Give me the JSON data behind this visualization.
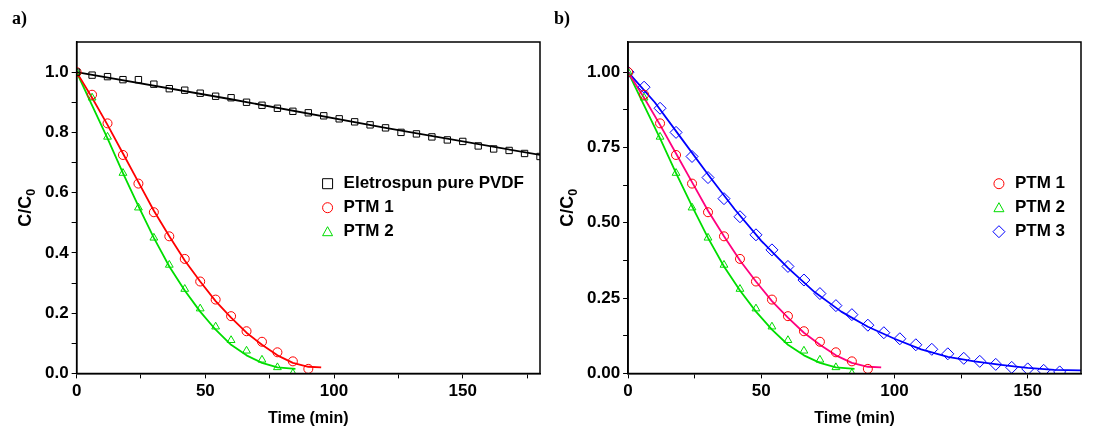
{
  "chart_data": [
    {
      "type": "scatter",
      "title": "a)",
      "xlabel": "Time (min)",
      "ylabel": "C/C$_{0}$",
      "xlim": [
        0,
        180
      ],
      "xticks": [
        0,
        {
          "value": 25,
          "label": null
        },
        50,
        {
          "value": 75,
          "label": null
        },
        100,
        {
          "value": 125,
          "label": null
        },
        150,
        {
          "value": 175,
          "label": null
        }
      ],
      "ylim": [
        0,
        1.1
      ],
      "yticks": [
        {
          "value": 0,
          "label": "0.0"
        },
        {
          "value": 0.1,
          "label": null
        },
        0.2,
        {
          "value": 0.3,
          "label": null
        },
        0.4,
        {
          "value": 0.5,
          "label": null
        },
        0.6,
        {
          "value": 0.7,
          "label": null
        },
        0.8,
        {
          "value": 0.9,
          "label": null
        },
        {
          "value": 1.0,
          "label": "1.0"
        }
      ],
      "grid": false,
      "legend": "right",
      "series": [
        {
          "name": "Eletrospun pure PVDF",
          "marker": "square",
          "color": "#000000",
          "x": [
            0,
            6,
            12,
            18,
            24,
            30,
            36,
            42,
            48,
            54,
            60,
            66,
            72,
            78,
            84,
            90,
            96,
            102,
            108,
            114,
            120,
            126,
            132,
            138,
            144,
            150,
            156,
            162,
            168,
            174,
            180
          ],
          "values": [
            1.0,
            0.99,
            0.985,
            0.975,
            0.975,
            0.96,
            0.945,
            0.94,
            0.93,
            0.92,
            0.915,
            0.9,
            0.89,
            0.88,
            0.87,
            0.865,
            0.855,
            0.845,
            0.835,
            0.825,
            0.815,
            0.8,
            0.795,
            0.785,
            0.775,
            0.77,
            0.755,
            0.745,
            0.74,
            0.73,
            0.72
          ]
        },
        {
          "name": "PTM 1",
          "marker": "circle",
          "color": "#ff0000",
          "x": [
            0,
            6,
            12,
            18,
            24,
            30,
            36,
            42,
            48,
            54,
            60,
            66,
            72,
            78,
            84,
            90
          ],
          "values": [
            1.0,
            0.925,
            0.83,
            0.725,
            0.63,
            0.535,
            0.455,
            0.38,
            0.305,
            0.245,
            0.19,
            0.14,
            0.105,
            0.07,
            0.04,
            0.015
          ]
        },
        {
          "name": "PTM 2",
          "marker": "triangle",
          "color": "#00dd00",
          "x": [
            0,
            6,
            12,
            18,
            24,
            30,
            36,
            42,
            48,
            54,
            60,
            66,
            72,
            78,
            84
          ],
          "values": [
            1.0,
            0.915,
            0.785,
            0.665,
            0.55,
            0.45,
            0.36,
            0.28,
            0.215,
            0.155,
            0.11,
            0.075,
            0.045,
            0.02,
            0.0
          ]
        },
        {
          "type": "line",
          "marker": "none",
          "color": "#000000",
          "x": [
            0,
            60,
            120,
            180
          ],
          "values": [
            1.0,
            0.91,
            0.815,
            0.725
          ]
        },
        {
          "type": "line",
          "marker": "none",
          "color": "#ff0000",
          "x": [
            0,
            6,
            12,
            18,
            24,
            30,
            36,
            42,
            48,
            54,
            60,
            66,
            72,
            78,
            84,
            90,
            95
          ],
          "values": [
            1.0,
            0.915,
            0.825,
            0.73,
            0.635,
            0.54,
            0.455,
            0.375,
            0.305,
            0.24,
            0.185,
            0.135,
            0.095,
            0.06,
            0.035,
            0.022,
            0.02
          ]
        },
        {
          "type": "line",
          "marker": "none",
          "color": "#00dd00",
          "x": [
            0,
            6,
            12,
            18,
            24,
            30,
            36,
            42,
            48,
            54,
            60,
            66,
            72,
            78,
            85
          ],
          "values": [
            1.0,
            0.89,
            0.78,
            0.665,
            0.555,
            0.45,
            0.355,
            0.275,
            0.205,
            0.145,
            0.095,
            0.06,
            0.035,
            0.02,
            0.015
          ]
        }
      ]
    },
    {
      "type": "scatter",
      "title": "b)",
      "xlabel": "Time (min)",
      "ylabel": "C/C$_{0}$",
      "xlim": [
        0,
        170
      ],
      "xticks": [
        0,
        {
          "value": 25,
          "label": null
        },
        50,
        {
          "value": 75,
          "label": null
        },
        100,
        {
          "value": 125,
          "label": null
        },
        150
      ],
      "ylim": [
        0,
        1.1
      ],
      "yticks": [
        {
          "value": 0,
          "label": "0.00"
        },
        {
          "value": 0.125,
          "label": null
        },
        0.25,
        {
          "value": 0.375,
          "label": null
        },
        {
          "value": 0.5,
          "label": "0.50"
        },
        {
          "value": 0.625,
          "label": null
        },
        0.75,
        {
          "value": 0.875,
          "label": null
        },
        {
          "value": 1.0,
          "label": "1.00"
        }
      ],
      "grid": false,
      "legend": "right",
      "series": [
        {
          "name": "PTM 1",
          "marker": "circle",
          "color": "#ff0000",
          "x": [
            0,
            6,
            12,
            18,
            24,
            30,
            36,
            42,
            48,
            54,
            60,
            66,
            72,
            78,
            84,
            90
          ],
          "values": [
            1.0,
            0.925,
            0.83,
            0.725,
            0.63,
            0.535,
            0.455,
            0.38,
            0.305,
            0.245,
            0.19,
            0.14,
            0.105,
            0.07,
            0.04,
            0.015
          ]
        },
        {
          "name": "PTM 2",
          "marker": "triangle",
          "color": "#00dd00",
          "x": [
            0,
            6,
            12,
            18,
            24,
            30,
            36,
            42,
            48,
            54,
            60,
            66,
            72,
            78,
            84
          ],
          "values": [
            1.0,
            0.915,
            0.785,
            0.665,
            0.55,
            0.45,
            0.36,
            0.28,
            0.215,
            0.155,
            0.11,
            0.075,
            0.045,
            0.02,
            0.0
          ]
        },
        {
          "name": "PTM 3",
          "marker": "diamond",
          "color": "#0000ff",
          "x": [
            0,
            6,
            12,
            18,
            24,
            30,
            36,
            42,
            48,
            54,
            60,
            66,
            72,
            78,
            84,
            90,
            96,
            102,
            108,
            114,
            120,
            126,
            132,
            138,
            144,
            150,
            156,
            162
          ],
          "values": [
            1.0,
            0.95,
            0.88,
            0.8,
            0.72,
            0.65,
            0.58,
            0.52,
            0.46,
            0.41,
            0.355,
            0.31,
            0.265,
            0.225,
            0.195,
            0.16,
            0.135,
            0.115,
            0.095,
            0.08,
            0.065,
            0.05,
            0.04,
            0.03,
            0.02,
            0.015,
            0.01,
            0.005
          ]
        },
        {
          "type": "line",
          "marker": "none",
          "color": "#ff0080",
          "x": [
            0,
            6,
            12,
            18,
            24,
            30,
            36,
            42,
            48,
            54,
            60,
            66,
            72,
            78,
            84,
            90,
            95
          ],
          "values": [
            1.0,
            0.915,
            0.825,
            0.73,
            0.635,
            0.54,
            0.455,
            0.375,
            0.305,
            0.24,
            0.185,
            0.135,
            0.095,
            0.06,
            0.035,
            0.022,
            0.02
          ]
        },
        {
          "type": "line",
          "marker": "none",
          "color": "#00dd00",
          "x": [
            0,
            6,
            12,
            18,
            24,
            30,
            36,
            42,
            48,
            54,
            60,
            66,
            72,
            78,
            85
          ],
          "values": [
            1.0,
            0.89,
            0.78,
            0.665,
            0.555,
            0.45,
            0.355,
            0.275,
            0.205,
            0.145,
            0.095,
            0.06,
            0.035,
            0.02,
            0.015
          ]
        },
        {
          "type": "line",
          "marker": "none",
          "color": "#0000ff",
          "x": [
            0,
            10,
            20,
            30,
            40,
            50,
            60,
            70,
            80,
            90,
            100,
            110,
            120,
            130,
            140,
            150,
            160,
            170
          ],
          "values": [
            1.0,
            0.9,
            0.78,
            0.66,
            0.545,
            0.44,
            0.35,
            0.27,
            0.205,
            0.155,
            0.115,
            0.08,
            0.055,
            0.04,
            0.028,
            0.018,
            0.012,
            0.01
          ]
        }
      ]
    }
  ]
}
